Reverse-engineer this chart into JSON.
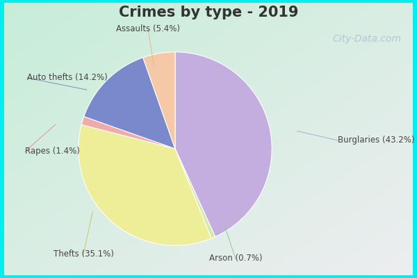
{
  "title": "Crimes by type - 2019",
  "labels": [
    "Burglaries",
    "Arson",
    "Thefts",
    "Rapes",
    "Auto thefts",
    "Assaults"
  ],
  "values": [
    43.2,
    0.7,
    35.1,
    1.4,
    14.2,
    5.4
  ],
  "colors": [
    "#C4AEE0",
    "#d4eaaa",
    "#EEEE98",
    "#F0AAAA",
    "#7A88CC",
    "#F5C8A8"
  ],
  "label_texts": [
    "Burglaries (43.2%)",
    "Arson (0.7%)",
    "Thefts (35.1%)",
    "Rapes (1.4%)",
    "Auto thefts (14.2%)",
    "Assaults (5.4%)"
  ],
  "border_color": "#00EEEE",
  "border_width": 6,
  "title_fontsize": 15,
  "label_fontsize": 8.5,
  "title_color": "#333333",
  "label_color": "#444444",
  "watermark_text": "City-Data.com",
  "watermark_color": "#aabbcc",
  "watermark_fontsize": 10
}
